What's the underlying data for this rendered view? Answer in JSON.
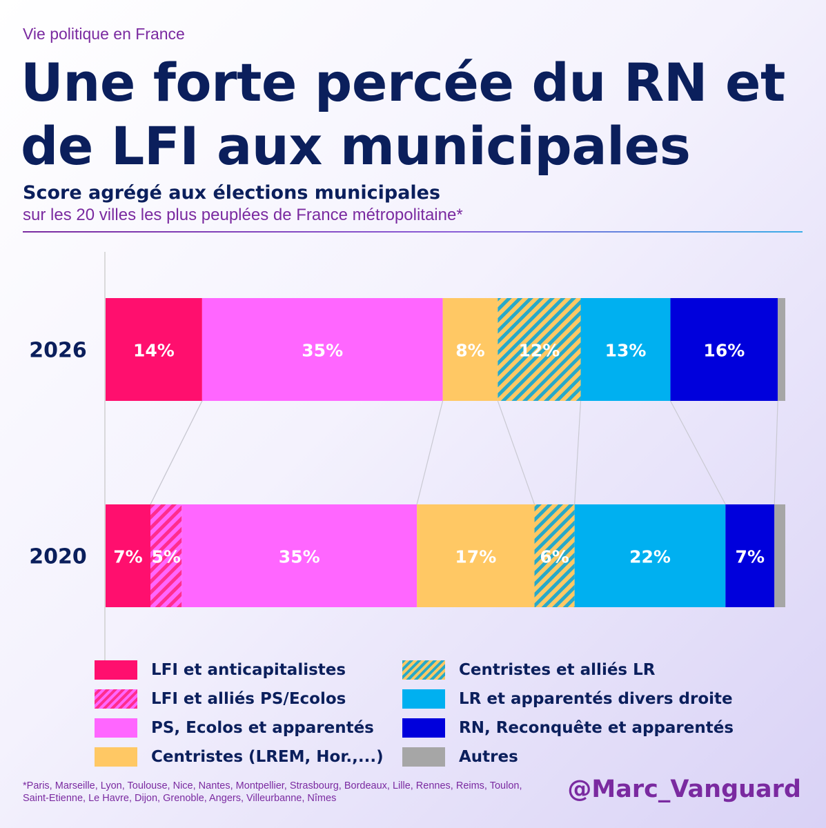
{
  "header": {
    "kicker": "Vie politique en France",
    "title": "Une forte percée du RN et de LFI aux municipales",
    "subtitle": "Score agrégé aux élections municipales",
    "subtitle2": "sur les 20 villes les plus peuplées de France métropolitaine*"
  },
  "chart_data": {
    "type": "bar",
    "orientation": "horizontal-stacked-100",
    "categories": [
      "2026",
      "2020"
    ],
    "series": [
      {
        "name": "LFI et anticapitalistes",
        "color": "#ff0f6e",
        "pattern": "solid",
        "values": [
          14.2,
          6.6
        ],
        "labels": [
          "14%",
          "7%"
        ]
      },
      {
        "name": "LFI et alliés PS/Ecolos",
        "color": "#ff2d8e",
        "pattern": "hatch-pink",
        "values": [
          0,
          4.6
        ],
        "labels": [
          "",
          "5%"
        ]
      },
      {
        "name": "PS, Ecolos et apparentés",
        "color": "#ff66ff",
        "pattern": "solid",
        "values": [
          35.4,
          34.6
        ],
        "labels": [
          "35%",
          "35%"
        ]
      },
      {
        "name": "Centristes (LREM, Hor.,...)",
        "color": "#ffc864",
        "pattern": "solid",
        "values": [
          8.1,
          17.3
        ],
        "labels": [
          "8%",
          "17%"
        ]
      },
      {
        "name": "Centristes et alliés LR",
        "color": "#28a9c8",
        "pattern": "hatch-cent",
        "values": [
          12.2,
          5.9
        ],
        "labels": [
          "12%",
          "6%"
        ]
      },
      {
        "name": "LR et apparentés divers droite",
        "color": "#00b0f0",
        "pattern": "solid",
        "values": [
          13.2,
          22.2
        ],
        "labels": [
          "13%",
          "22%"
        ]
      },
      {
        "name": "RN, Reconquête et apparentés",
        "color": "#0000dc",
        "pattern": "solid",
        "values": [
          15.8,
          7.2
        ],
        "labels": [
          "16%",
          "7%"
        ]
      },
      {
        "name": "Autres",
        "color": "#a6a6a6",
        "pattern": "solid",
        "values": [
          1.1,
          1.6
        ],
        "labels": [
          "",
          ""
        ]
      }
    ],
    "xlim": [
      0,
      100
    ],
    "legend_position": "bottom"
  },
  "footnote": "*Paris, Marseille, Lyon, Toulouse, Nice, Nantes, Montpellier, Strasbourg, Bordeaux, Lille, Rennes, Reims, Toulon, Saint-Etienne, Le Havre, Dijon, Grenoble, Angers, Villeurbanne, Nîmes",
  "handle": "@Marc_Vanguard"
}
